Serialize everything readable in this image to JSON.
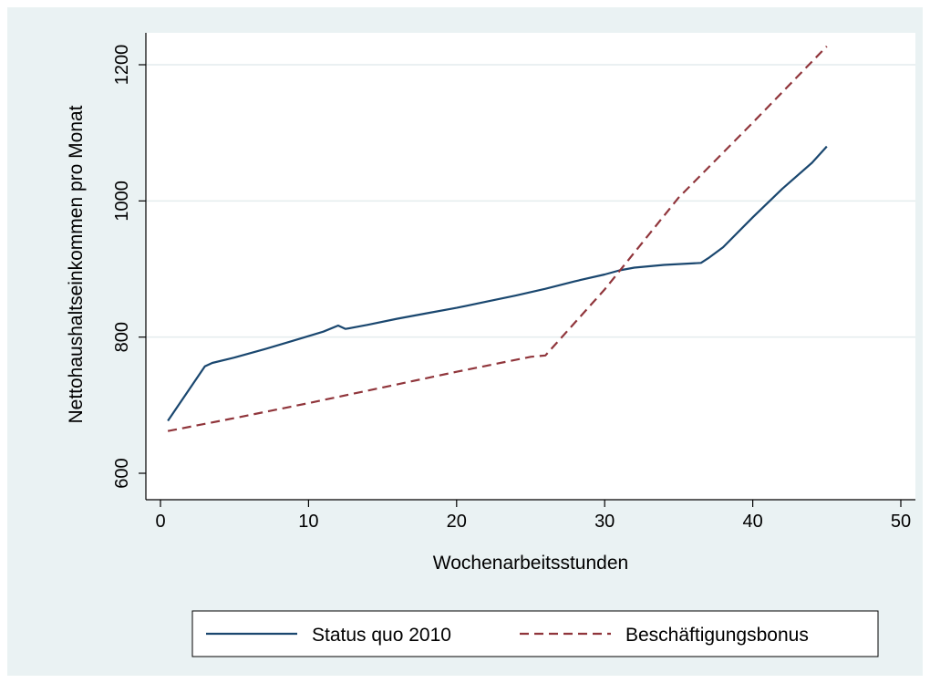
{
  "chart_data": {
    "type": "line",
    "xlabel": "Wochenarbeitsstunden",
    "ylabel": "Nettohaushaltseinkommen pro Monat",
    "xlim": [
      0,
      50
    ],
    "ylim": [
      600,
      1250
    ],
    "xticks": [
      0,
      10,
      20,
      30,
      40,
      50
    ],
    "yticks": [
      600,
      800,
      1000,
      1200
    ],
    "grid": "horizontal",
    "legend_position": "bottom",
    "series": [
      {
        "name": "Status quo 2010",
        "color": "#1a476f",
        "style": "solid",
        "points": [
          [
            0.5,
            677
          ],
          [
            3,
            757
          ],
          [
            3.5,
            762
          ],
          [
            5,
            770
          ],
          [
            7,
            782
          ],
          [
            9,
            795
          ],
          [
            11,
            808
          ],
          [
            12,
            817
          ],
          [
            12.5,
            812
          ],
          [
            14,
            818
          ],
          [
            16,
            827
          ],
          [
            18,
            835
          ],
          [
            20,
            843
          ],
          [
            22,
            852
          ],
          [
            24,
            861
          ],
          [
            26,
            871
          ],
          [
            28,
            882
          ],
          [
            30,
            892
          ],
          [
            31,
            898
          ],
          [
            32,
            902
          ],
          [
            34,
            906
          ],
          [
            36.5,
            909
          ],
          [
            37,
            916
          ],
          [
            38,
            932
          ],
          [
            40,
            976
          ],
          [
            42,
            1018
          ],
          [
            44,
            1056
          ],
          [
            45,
            1080
          ]
        ]
      },
      {
        "name": "Beschäftigungsbonus",
        "color": "#90353b",
        "style": "dashed",
        "points": [
          [
            0.5,
            662
          ],
          [
            5,
            681
          ],
          [
            10,
            703
          ],
          [
            15,
            726
          ],
          [
            20,
            749
          ],
          [
            25,
            771
          ],
          [
            26,
            773
          ],
          [
            30,
            870
          ],
          [
            35,
            1005
          ],
          [
            40,
            1115
          ],
          [
            45,
            1227
          ]
        ]
      }
    ]
  }
}
